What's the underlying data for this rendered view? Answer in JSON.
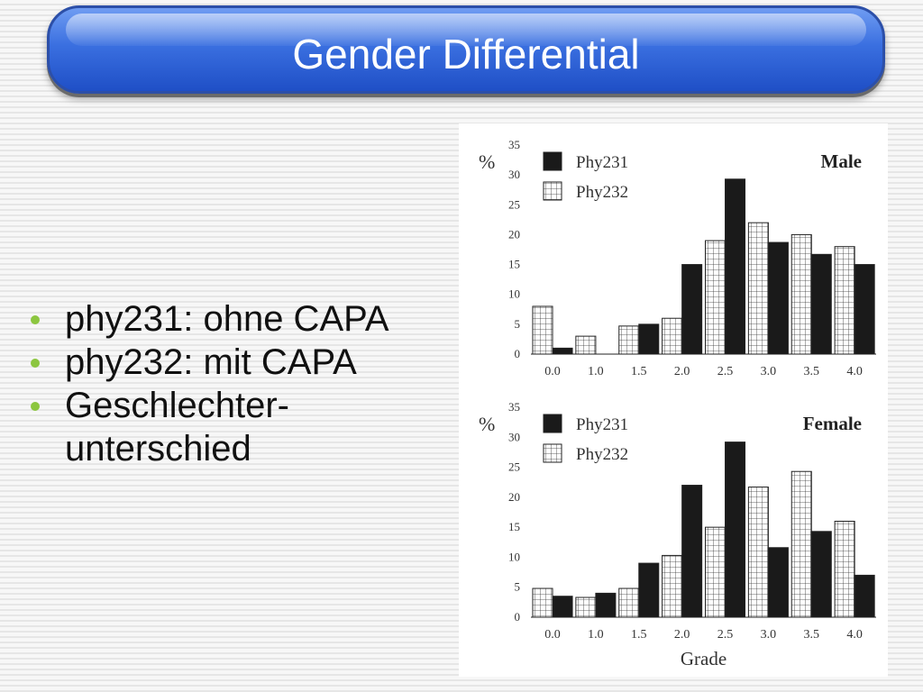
{
  "slide": {
    "title": "Gender Differential",
    "bullets": [
      "phy231: ohne CAPA",
      "phy232: mit CAPA",
      "Geschlechter-\nunterschied"
    ]
  },
  "colors": {
    "title_bar": "#3a6fe0",
    "bullet": "#8cc63f",
    "phy231": "#1a1a1a",
    "phy232": "#ffffff"
  },
  "chart_data": [
    {
      "type": "bar",
      "panel_label": "Male",
      "ylabel": "%",
      "xlabel": "",
      "ylim": [
        0,
        35
      ],
      "yticks": [
        0,
        5,
        10,
        15,
        20,
        25,
        30,
        35
      ],
      "categories": [
        "0.0",
        "1.0",
        "1.5",
        "2.0",
        "2.5",
        "3.0",
        "3.5",
        "4.0"
      ],
      "legend_position": "top-left",
      "series": [
        {
          "name": "Phy232",
          "pattern": "grid",
          "values": [
            8,
            3,
            4.7,
            6,
            19,
            22,
            20,
            18
          ]
        },
        {
          "name": "Phy231",
          "pattern": "solid",
          "values": [
            1,
            0,
            5,
            15,
            29.3,
            18.7,
            16.7,
            15
          ]
        }
      ]
    },
    {
      "type": "bar",
      "panel_label": "Female",
      "ylabel": "%",
      "xlabel": "Grade",
      "ylim": [
        0,
        35
      ],
      "yticks": [
        0,
        5,
        10,
        15,
        20,
        25,
        30,
        35
      ],
      "categories": [
        "0.0",
        "1.0",
        "1.5",
        "2.0",
        "2.5",
        "3.0",
        "3.5",
        "4.0"
      ],
      "legend_position": "top-left",
      "series": [
        {
          "name": "Phy232",
          "pattern": "grid",
          "values": [
            4.8,
            3.3,
            4.8,
            10.3,
            15,
            21.7,
            24.3,
            16
          ]
        },
        {
          "name": "Phy231",
          "pattern": "solid",
          "values": [
            3.5,
            4,
            9,
            22,
            29.2,
            11.6,
            14.3,
            7
          ]
        }
      ]
    }
  ]
}
